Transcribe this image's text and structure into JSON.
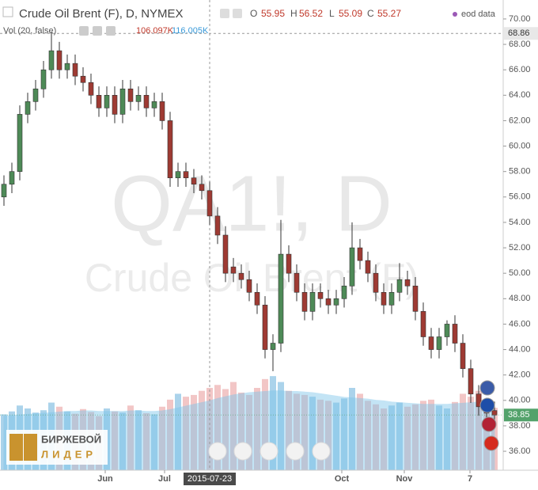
{
  "chart_data": {
    "type": "candlestick",
    "title": "Crude Oil Brent (F), D, NYMEX",
    "watermark": "QA1!, D",
    "watermark_sub": "Crude Oil Brent (F)",
    "ohlc_legend": {
      "o_label": "O",
      "o": 55.95,
      "h_label": "H",
      "h": 56.52,
      "l_label": "L",
      "l": 55.09,
      "c_label": "C",
      "c": 55.27
    },
    "source": "eod data",
    "up_color": "#4e8a57",
    "down_color": "#9e3a33",
    "open": [
      56,
      57,
      58,
      62.5,
      63.5,
      64.5,
      66,
      67.5,
      66,
      66.5,
      65.5,
      65,
      64,
      63,
      64,
      62.5,
      64.5,
      63.5,
      64,
      63,
      63.5,
      62,
      57.5,
      58,
      57.5,
      57,
      56.5,
      54.5,
      53,
      50.5,
      50,
      49.5,
      48.5,
      47.5,
      44,
      44.5,
      51.5,
      50,
      48.5,
      47,
      48.5,
      48,
      47.5,
      48,
      49,
      52,
      51,
      50,
      48.5,
      47.5,
      48.5,
      49.5,
      49,
      47,
      45,
      44,
      45,
      46,
      44.5,
      42.5,
      40.5,
      39.5,
      39.2
    ],
    "high": [
      57.7,
      58.7,
      63.2,
      64.2,
      65.2,
      66.7,
      69,
      68.2,
      67.2,
      67.2,
      66.2,
      65.7,
      64.7,
      64.7,
      64.7,
      65.2,
      65.2,
      64.7,
      64.7,
      64.2,
      64.2,
      62.7,
      58.7,
      58.7,
      58.2,
      57.7,
      57.2,
      55.2,
      53.7,
      51.2,
      50.7,
      50.2,
      49.2,
      48.2,
      45.2,
      54.2,
      52.2,
      50.7,
      49.2,
      49.2,
      49.2,
      48.7,
      48.7,
      49.7,
      54,
      52.7,
      51.7,
      50.7,
      49.2,
      49.2,
      50.8,
      50.2,
      49.7,
      47.7,
      45.7,
      45.7,
      46.3,
      46.7,
      45.2,
      43.2,
      41.2,
      40.2,
      39.9
    ],
    "low": [
      55.3,
      56.3,
      57.3,
      61.8,
      62.8,
      63.8,
      65.3,
      65.3,
      65.3,
      64.8,
      64.3,
      63.3,
      62.3,
      62.3,
      61.8,
      61.8,
      62.8,
      62.8,
      62.3,
      62.3,
      61.3,
      56.8,
      56.8,
      56.8,
      56.3,
      55.8,
      53.8,
      52.3,
      49.3,
      49.3,
      48.8,
      47.8,
      46.8,
      43.3,
      42.3,
      43.8,
      49.3,
      47.8,
      46.3,
      46.3,
      47.3,
      46.8,
      46.8,
      47.3,
      48.3,
      50.3,
      49.3,
      47.8,
      46.8,
      46.8,
      47.8,
      48.3,
      46.3,
      44.3,
      43.3,
      43.3,
      44.3,
      43.8,
      41.8,
      39.8,
      38.8,
      38.3,
      38.2
    ],
    "close": [
      57,
      58,
      62.5,
      63.5,
      64.5,
      66,
      67.5,
      66,
      66.5,
      65.5,
      65,
      64,
      63,
      64,
      62.5,
      64.5,
      63.5,
      64,
      63,
      63.5,
      62,
      57.5,
      58,
      57.5,
      57,
      56.5,
      54.5,
      53,
      50,
      50,
      49.5,
      48.5,
      47.5,
      44,
      44.5,
      51.5,
      50,
      48.5,
      47,
      48.5,
      48,
      47.5,
      48,
      49,
      52,
      51,
      50,
      48.5,
      47.5,
      48.5,
      49.5,
      49,
      47,
      45,
      44,
      45,
      46,
      44.5,
      42.5,
      40.5,
      39.5,
      39,
      38.85
    ],
    "volume": {
      "name": "Vol (20, false)",
      "values": [
        95,
        100,
        110,
        105,
        98,
        102,
        115,
        108,
        100,
        96,
        104,
        99,
        92,
        105,
        100,
        98,
        110,
        102,
        97,
        95,
        108,
        120,
        130,
        125,
        128,
        135,
        140,
        145,
        138,
        150,
        132,
        128,
        140,
        155,
        160,
        150,
        135,
        130,
        128,
        125,
        120,
        118,
        115,
        122,
        140,
        130,
        118,
        112,
        105,
        110,
        115,
        108,
        112,
        118,
        120,
        110,
        105,
        116,
        130,
        125,
        135,
        115,
        106.097
      ],
      "value_label": "106.097K",
      "ma": [
        92,
        93,
        94,
        95,
        96,
        97,
        98,
        99,
        100,
        100,
        101,
        101,
        100,
        100,
        100,
        100,
        101,
        101,
        100,
        100,
        101,
        103,
        106,
        109,
        112,
        115,
        118,
        122,
        125,
        128,
        130,
        132,
        133,
        134,
        135,
        135,
        134,
        134,
        133,
        132,
        130,
        128,
        126,
        124,
        123,
        122,
        121,
        119,
        118,
        116,
        115,
        114,
        113,
        112,
        112,
        112,
        112,
        113,
        114,
        115,
        116,
        116,
        116.005
      ],
      "ma_label": "116.005K",
      "ylim": [
        0,
        210
      ],
      "up_color": "#9ccbe8",
      "down_color": "#f0bcbc",
      "ma_color": "#7cc4ea"
    },
    "xlim": [
      -0.5,
      62.8
    ],
    "xticks": [
      {
        "value": 12.8,
        "label": "Jun"
      },
      {
        "value": 20.3,
        "label": "Jul"
      },
      {
        "value": 42.7,
        "label": "Oct"
      },
      {
        "value": 50.6,
        "label": "Nov"
      },
      {
        "value": 58.9,
        "label": "7"
      }
    ],
    "ylim": [
      34.51,
      71.49
    ],
    "yticks": [
      {
        "value": 36,
        "label": "36.00"
      },
      {
        "value": 38,
        "label": "38.00"
      },
      {
        "value": 40,
        "label": "40.00"
      },
      {
        "value": 42,
        "label": "42.00"
      },
      {
        "value": 44,
        "label": "44.00"
      },
      {
        "value": 46,
        "label": "46.00"
      },
      {
        "value": 48,
        "label": "48.00"
      },
      {
        "value": 50,
        "label": "50.00"
      },
      {
        "value": 52,
        "label": "52.00"
      },
      {
        "value": 54,
        "label": "54.00"
      },
      {
        "value": 56,
        "label": "56.00"
      },
      {
        "value": 58,
        "label": "58.00"
      },
      {
        "value": 60,
        "label": "60.00"
      },
      {
        "value": 62,
        "label": "62.00"
      },
      {
        "value": 64,
        "label": "64.00"
      },
      {
        "value": 66,
        "label": "66.00"
      },
      {
        "value": 68,
        "label": "68.00"
      },
      {
        "value": 70,
        "label": "70.00"
      }
    ],
    "crosshair": {
      "x": 26,
      "x_label": "2015-07-23",
      "y": 68.86
    },
    "last_price": 38.85,
    "last_price_color": "#53a26b"
  },
  "logo": {
    "line1": "БИРЖЕВОЙ",
    "line2": "ЛИДЕР"
  }
}
